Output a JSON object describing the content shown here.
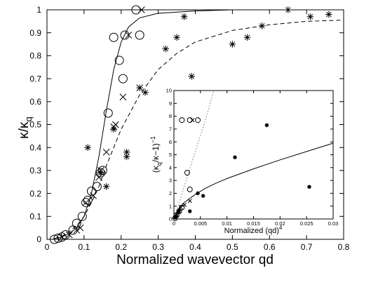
{
  "chart_data": [
    {
      "type": "scatter",
      "xlabel": "Normalized wavevector qd",
      "ylabel_main": "κ/κ",
      "ylabel_sub": "q",
      "xlim": [
        0,
        0.8
      ],
      "ylim": [
        0,
        1
      ],
      "xticks": [
        "0",
        "0.1",
        "0.2",
        "0.3",
        "0.4",
        "0.5",
        "0.6",
        "0.7",
        "0.8"
      ],
      "yticks": [
        "0",
        "0.1",
        "0.2",
        "0.3",
        "0.4",
        "0.5",
        "0.6",
        "0.7",
        "0.8",
        "0.9",
        "1"
      ],
      "grid": false,
      "series": [
        {
          "marker": "circle",
          "points": [
            [
              0.02,
              0.0
            ],
            [
              0.03,
              0.005
            ],
            [
              0.04,
              0.01
            ],
            [
              0.05,
              0.02
            ],
            [
              0.07,
              0.04
            ],
            [
              0.08,
              0.07
            ],
            [
              0.095,
              0.1
            ],
            [
              0.105,
              0.16
            ],
            [
              0.11,
              0.17
            ],
            [
              0.12,
              0.21
            ],
            [
              0.135,
              0.23
            ],
            [
              0.145,
              0.29
            ],
            [
              0.15,
              0.3
            ],
            [
              0.165,
              0.55
            ],
            [
              0.18,
              0.88
            ],
            [
              0.195,
              0.78
            ],
            [
              0.205,
              0.7
            ],
            [
              0.21,
              0.89
            ],
            [
              0.24,
              1.0
            ],
            [
              0.25,
              0.89
            ]
          ]
        },
        {
          "marker": "x",
          "points": [
            [
              0.04,
              0.01
            ],
            [
              0.06,
              0.02
            ],
            [
              0.08,
              0.04
            ],
            [
              0.09,
              0.05
            ],
            [
              0.105,
              0.16
            ],
            [
              0.125,
              0.19
            ],
            [
              0.14,
              0.27
            ],
            [
              0.145,
              0.3
            ],
            [
              0.16,
              0.38
            ],
            [
              0.18,
              0.49
            ],
            [
              0.185,
              0.5
            ],
            [
              0.205,
              0.62
            ],
            [
              0.22,
              0.89
            ],
            [
              0.25,
              0.66
            ],
            [
              0.255,
              1.0
            ]
          ]
        },
        {
          "marker": "asterisk",
          "points": [
            [
              0.11,
              0.4
            ],
            [
              0.145,
              0.29
            ],
            [
              0.16,
              0.23
            ],
            [
              0.18,
              0.48
            ],
            [
              0.215,
              0.36
            ],
            [
              0.215,
              0.38
            ],
            [
              0.25,
              0.66
            ],
            [
              0.265,
              0.64
            ],
            [
              0.32,
              0.83
            ],
            [
              0.35,
              0.88
            ],
            [
              0.37,
              0.97
            ],
            [
              0.39,
              0.71
            ],
            [
              0.5,
              0.85
            ],
            [
              0.54,
              0.88
            ],
            [
              0.58,
              0.93
            ],
            [
              0.65,
              1.0
            ],
            [
              0.71,
              0.97
            ],
            [
              0.76,
              0.98
            ]
          ]
        }
      ],
      "curves": [
        {
          "style": "solid",
          "points": [
            [
              0.02,
              0.003
            ],
            [
              0.04,
              0.01
            ],
            [
              0.06,
              0.025
            ],
            [
              0.08,
              0.05
            ],
            [
              0.1,
              0.1
            ],
            [
              0.12,
              0.2
            ],
            [
              0.14,
              0.36
            ],
            [
              0.16,
              0.56
            ],
            [
              0.18,
              0.74
            ],
            [
              0.2,
              0.86
            ],
            [
              0.22,
              0.925
            ],
            [
              0.25,
              0.965
            ],
            [
              0.3,
              0.985
            ],
            [
              0.4,
              0.995
            ],
            [
              0.5,
              1.0
            ],
            [
              0.8,
              1.0
            ]
          ]
        },
        {
          "style": "dashed",
          "points": [
            [
              0.02,
              0.003
            ],
            [
              0.05,
              0.02
            ],
            [
              0.08,
              0.06
            ],
            [
              0.1,
              0.1
            ],
            [
              0.12,
              0.16
            ],
            [
              0.14,
              0.23
            ],
            [
              0.16,
              0.32
            ],
            [
              0.18,
              0.4
            ],
            [
              0.2,
              0.48
            ],
            [
              0.25,
              0.63
            ],
            [
              0.3,
              0.74
            ],
            [
              0.35,
              0.81
            ],
            [
              0.4,
              0.86
            ],
            [
              0.5,
              0.91
            ],
            [
              0.6,
              0.935
            ],
            [
              0.7,
              0.95
            ],
            [
              0.8,
              0.955
            ]
          ]
        }
      ]
    },
    {
      "type": "scatter",
      "xlabel_main": "Normalized (qd)",
      "xlabel_sup": "4",
      "ylabel_main": "(κ",
      "ylabel_sub": "q",
      "ylabel_rest": "/κ−1)",
      "ylabel_sup": "−1",
      "xlim": [
        0,
        0.03
      ],
      "ylim": [
        0,
        10
      ],
      "xticks": [
        "0",
        "0.005",
        "0.01",
        "0.015",
        "0.02",
        "0.025",
        "0.03"
      ],
      "yticks": [
        "0",
        "1",
        "2",
        "3",
        "4",
        "5",
        "6",
        "7",
        "8",
        "9",
        "10"
      ],
      "grid": false,
      "series": [
        {
          "marker": "circle",
          "points": [
            [
              0.0002,
              0.05
            ],
            [
              0.0005,
              0.3
            ],
            [
              0.001,
              0.6
            ],
            [
              0.0015,
              0.9
            ],
            [
              0.0025,
              3.6
            ],
            [
              0.003,
              2.3
            ],
            [
              0.0015,
              7.7
            ],
            [
              0.003,
              7.7
            ],
            [
              0.0045,
              7.7
            ]
          ]
        },
        {
          "marker": "x",
          "points": [
            [
              0.0003,
              0.1
            ],
            [
              0.0006,
              0.3
            ],
            [
              0.001,
              0.6
            ],
            [
              0.0013,
              0.9
            ],
            [
              0.002,
              1.1
            ],
            [
              0.003,
              1.4
            ],
            [
              0.0035,
              7.7
            ]
          ]
        },
        {
          "marker": "asterisk",
          "points": [
            [
              0.0002,
              0.1
            ],
            [
              0.0004,
              0.2
            ],
            [
              0.0008,
              0.5
            ],
            [
              0.001,
              0.7
            ],
            [
              0.003,
              0.6
            ],
            [
              0.0055,
              1.8
            ],
            [
              0.0045,
              2.0
            ],
            [
              0.0115,
              4.8
            ],
            [
              0.0175,
              7.3
            ],
            [
              0.0255,
              2.5
            ]
          ]
        }
      ],
      "curves": [
        {
          "style": "solid",
          "points": [
            [
              0,
              0
            ],
            [
              0.0005,
              0.5
            ],
            [
              0.001,
              0.85
            ],
            [
              0.002,
              1.3
            ],
            [
              0.004,
              1.9
            ],
            [
              0.006,
              2.4
            ],
            [
              0.008,
              2.8
            ],
            [
              0.01,
              3.15
            ],
            [
              0.015,
              3.9
            ],
            [
              0.02,
              4.6
            ],
            [
              0.025,
              5.25
            ],
            [
              0.03,
              5.9
            ]
          ]
        },
        {
          "style": "dotted",
          "points": [
            [
              0,
              0
            ],
            [
              0.002,
              2.6
            ],
            [
              0.004,
              5.2
            ],
            [
              0.006,
              7.8
            ],
            [
              0.0075,
              10
            ]
          ]
        }
      ]
    }
  ]
}
